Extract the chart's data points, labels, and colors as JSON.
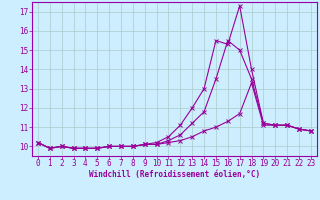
{
  "title": "",
  "xlabel": "Windchill (Refroidissement éolien,°C)",
  "bg_color": "#cceeff",
  "line_color": "#990099",
  "grid_color": "#aacccc",
  "spine_color": "#9900aa",
  "xlim": [
    -0.5,
    23.5
  ],
  "ylim": [
    9.5,
    17.5
  ],
  "yticks": [
    10,
    11,
    12,
    13,
    14,
    15,
    16,
    17
  ],
  "xticks": [
    0,
    1,
    2,
    3,
    4,
    5,
    6,
    7,
    8,
    9,
    10,
    11,
    12,
    13,
    14,
    15,
    16,
    17,
    18,
    19,
    20,
    21,
    22,
    23
  ],
  "series": {
    "line1_x": [
      0,
      1,
      2,
      3,
      4,
      5,
      6,
      7,
      8,
      9,
      10,
      11,
      12,
      13,
      14,
      15,
      16,
      17,
      18,
      19,
      20,
      21,
      22,
      23
    ],
    "line1_y": [
      10.2,
      9.9,
      10.0,
      9.9,
      9.9,
      9.9,
      10.0,
      10.0,
      10.0,
      10.1,
      10.2,
      10.5,
      11.1,
      12.0,
      13.0,
      15.5,
      15.3,
      17.3,
      14.0,
      11.2,
      11.1,
      11.1,
      10.9,
      10.8
    ],
    "line2_x": [
      0,
      1,
      2,
      3,
      4,
      5,
      6,
      7,
      8,
      9,
      10,
      11,
      12,
      13,
      14,
      15,
      16,
      17,
      18,
      19,
      20,
      21,
      22,
      23
    ],
    "line2_y": [
      10.2,
      9.9,
      10.0,
      9.9,
      9.9,
      9.9,
      10.0,
      10.0,
      10.0,
      10.1,
      10.1,
      10.3,
      10.6,
      11.2,
      11.8,
      13.5,
      15.5,
      15.0,
      13.5,
      11.2,
      11.1,
      11.1,
      10.9,
      10.8
    ],
    "line3_x": [
      0,
      1,
      2,
      3,
      4,
      5,
      6,
      7,
      8,
      9,
      10,
      11,
      12,
      13,
      14,
      15,
      16,
      17,
      18,
      19,
      20,
      21,
      22,
      23
    ],
    "line3_y": [
      10.2,
      9.9,
      10.0,
      9.9,
      9.9,
      9.9,
      10.0,
      10.0,
      10.0,
      10.1,
      10.1,
      10.2,
      10.3,
      10.5,
      10.8,
      11.0,
      11.3,
      11.7,
      13.3,
      11.1,
      11.1,
      11.1,
      10.9,
      10.8
    ]
  },
  "tick_fontsize": 5.5,
  "xlabel_fontsize": 5.5
}
